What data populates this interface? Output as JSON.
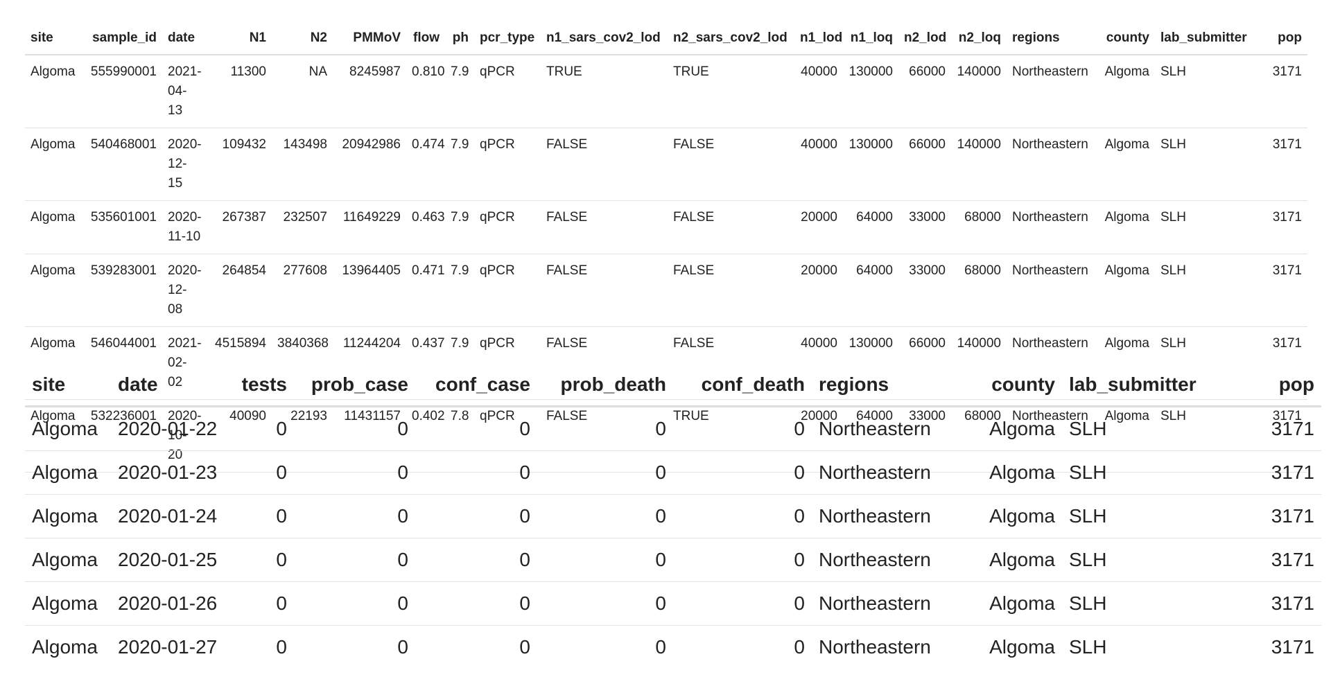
{
  "wastewater": {
    "columns": [
      {
        "label": "site",
        "align": "l"
      },
      {
        "label": "sample_id",
        "align": "r"
      },
      {
        "label": "date",
        "align": "l"
      },
      {
        "label": "N1",
        "align": "r"
      },
      {
        "label": "N2",
        "align": "r"
      },
      {
        "label": "PMMoV",
        "align": "r"
      },
      {
        "label": "flow",
        "align": "r"
      },
      {
        "label": "ph",
        "align": "r"
      },
      {
        "label": "pcr_type",
        "align": "l"
      },
      {
        "label": "n1_sars_cov2_lod",
        "align": "l"
      },
      {
        "label": "n2_sars_cov2_lod",
        "align": "l"
      },
      {
        "label": "n1_lod",
        "align": "r"
      },
      {
        "label": "n1_loq",
        "align": "r"
      },
      {
        "label": "n2_lod",
        "align": "r"
      },
      {
        "label": "n2_loq",
        "align": "r"
      },
      {
        "label": "regions",
        "align": "l"
      },
      {
        "label": "county",
        "align": "r"
      },
      {
        "label": "lab_submitter",
        "align": "l"
      },
      {
        "label": "pop",
        "align": "r"
      }
    ],
    "rows": [
      [
        "Algoma",
        "555990001",
        "2021-04-13",
        "11300",
        "NA",
        "8245987",
        "0.810",
        "7.9",
        "qPCR",
        "TRUE",
        "TRUE",
        "40000",
        "130000",
        "66000",
        "140000",
        "Northeastern",
        "Algoma",
        "SLH",
        "3171"
      ],
      [
        "Algoma",
        "540468001",
        "2020-12-15",
        "109432",
        "143498",
        "20942986",
        "0.474",
        "7.9",
        "qPCR",
        "FALSE",
        "FALSE",
        "40000",
        "130000",
        "66000",
        "140000",
        "Northeastern",
        "Algoma",
        "SLH",
        "3171"
      ],
      [
        "Algoma",
        "535601001",
        "2020-11-10",
        "267387",
        "232507",
        "11649229",
        "0.463",
        "7.9",
        "qPCR",
        "FALSE",
        "FALSE",
        "20000",
        "64000",
        "33000",
        "68000",
        "Northeastern",
        "Algoma",
        "SLH",
        "3171"
      ],
      [
        "Algoma",
        "539283001",
        "2020-12-08",
        "264854",
        "277608",
        "13964405",
        "0.471",
        "7.9",
        "qPCR",
        "FALSE",
        "FALSE",
        "20000",
        "64000",
        "33000",
        "68000",
        "Northeastern",
        "Algoma",
        "SLH",
        "3171"
      ],
      [
        "Algoma",
        "546044001",
        "2021-02-02",
        "4515894",
        "3840368",
        "11244204",
        "0.437",
        "7.9",
        "qPCR",
        "FALSE",
        "FALSE",
        "40000",
        "130000",
        "66000",
        "140000",
        "Northeastern",
        "Algoma",
        "SLH",
        "3171"
      ],
      [
        "Algoma",
        "532236001",
        "2020-10-20",
        "40090",
        "22193",
        "11431157",
        "0.402",
        "7.8",
        "qPCR",
        "FALSE",
        "TRUE",
        "20000",
        "64000",
        "33000",
        "68000",
        "Northeastern",
        "Algoma",
        "SLH",
        "3171"
      ]
    ]
  },
  "cases": {
    "columns": [
      {
        "label": "site",
        "align": "l"
      },
      {
        "label": "date",
        "align": "l"
      },
      {
        "label": "tests",
        "align": "r"
      },
      {
        "label": "prob_case",
        "align": "r"
      },
      {
        "label": "conf_case",
        "align": "r"
      },
      {
        "label": "prob_death",
        "align": "r"
      },
      {
        "label": "conf_death",
        "align": "r"
      },
      {
        "label": "regions",
        "align": "l"
      },
      {
        "label": "county",
        "align": "r"
      },
      {
        "label": "lab_submitter",
        "align": "l"
      },
      {
        "label": "pop",
        "align": "r"
      }
    ],
    "rows": [
      [
        "Algoma",
        "2020-01-22",
        "0",
        "0",
        "0",
        "0",
        "0",
        "Northeastern",
        "Algoma",
        "SLH",
        "3171"
      ],
      [
        "Algoma",
        "2020-01-23",
        "0",
        "0",
        "0",
        "0",
        "0",
        "Northeastern",
        "Algoma",
        "SLH",
        "3171"
      ],
      [
        "Algoma",
        "2020-01-24",
        "0",
        "0",
        "0",
        "0",
        "0",
        "Northeastern",
        "Algoma",
        "SLH",
        "3171"
      ],
      [
        "Algoma",
        "2020-01-25",
        "0",
        "0",
        "0",
        "0",
        "0",
        "Northeastern",
        "Algoma",
        "SLH",
        "3171"
      ],
      [
        "Algoma",
        "2020-01-26",
        "0",
        "0",
        "0",
        "0",
        "0",
        "Northeastern",
        "Algoma",
        "SLH",
        "3171"
      ],
      [
        "Algoma",
        "2020-01-27",
        "0",
        "0",
        "0",
        "0",
        "0",
        "Northeastern",
        "Algoma",
        "SLH",
        "3171"
      ]
    ]
  }
}
